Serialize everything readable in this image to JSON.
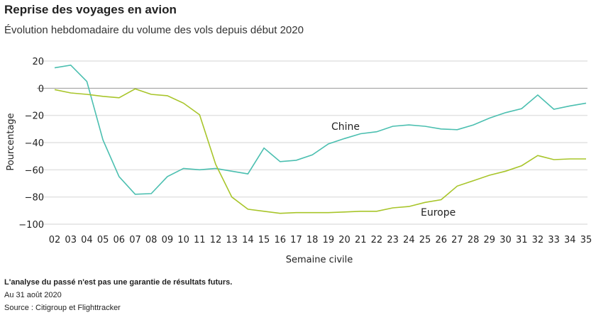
{
  "title": "Reprise des voyages en avion",
  "subtitle": "Évolution hebdomadaire du volume des vols depuis début 2020",
  "footnotes": {
    "disclaimer": "L'analyse du passé n'est pas une garantie de résultats futurs.",
    "date": "Au 31 août 2020",
    "source": "Source : Citigroup et Flighttracker"
  },
  "chart_data": {
    "type": "line",
    "xlabel": "Semaine civile",
    "ylabel": "Pourcentage",
    "ylim": [
      -100,
      20
    ],
    "yticks": [
      20,
      0,
      -20,
      -40,
      -60,
      -80,
      -100
    ],
    "ytick_labels": [
      "20",
      "0",
      "−20",
      "−40",
      "−60",
      "−80",
      "−100"
    ],
    "grid": true,
    "categories": [
      "02",
      "03",
      "04",
      "05",
      "06",
      "07",
      "08",
      "09",
      "10",
      "11",
      "12",
      "13",
      "14",
      "15",
      "16",
      "17",
      "18",
      "19",
      "20",
      "21",
      "22",
      "23",
      "24",
      "25",
      "26",
      "27",
      "28",
      "29",
      "30",
      "31",
      "32",
      "33",
      "34",
      "35"
    ],
    "series": [
      {
        "name": "Chine",
        "color": "#4bbfb0",
        "values": [
          15,
          17,
          5,
          -38,
          -65,
          -78,
          -77.5,
          -65,
          -59,
          -60,
          -59,
          -61,
          -63,
          -44,
          -54,
          -53,
          -49,
          -41,
          -37,
          -33.5,
          -32,
          -28,
          -27,
          -28,
          -30,
          -30.5,
          -27,
          -22,
          -18,
          -15,
          -5,
          -15.5,
          -13,
          -11
        ]
      },
      {
        "name": "Europe",
        "color": "#a8c52a",
        "values": [
          -1,
          -3.5,
          -4.5,
          -6,
          -7,
          -0.5,
          -4.5,
          -5.5,
          -11,
          -19.5,
          -56,
          -80,
          -89,
          -90.5,
          -92,
          -91.5,
          -91.5,
          -91.5,
          -91,
          -90.5,
          -90.5,
          -88,
          -87,
          -84,
          -82,
          -72,
          -68,
          -64,
          -61,
          -57,
          -49.5,
          -52.5,
          -52,
          -52
        ]
      }
    ]
  }
}
